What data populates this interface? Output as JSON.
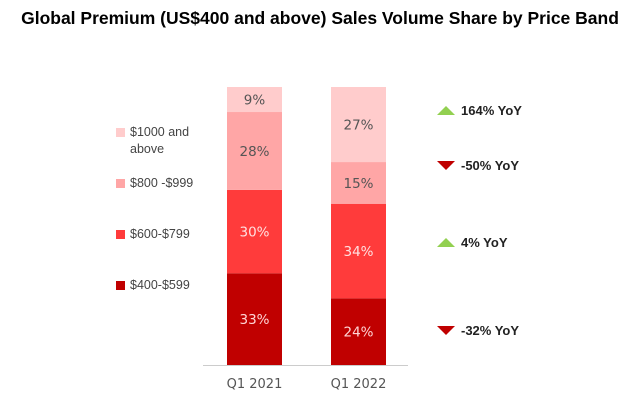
{
  "chart_data": {
    "type": "bar",
    "stacked": true,
    "title": "Global Premium (US$400 and above) Sales Volume Share by Price Band",
    "categories": [
      "Q1 2021",
      "Q1 2022"
    ],
    "series": [
      {
        "name": "$400-$599",
        "color": "#C00000",
        "values": [
          33,
          24
        ],
        "label_color": "#FFD5D5"
      },
      {
        "name": "$600-$799",
        "color": "#FF3B3B",
        "values": [
          30,
          34
        ],
        "label_color": "#FFE0E0"
      },
      {
        "name": "$800 -$999",
        "color": "#FFA6A6",
        "values": [
          28,
          15
        ],
        "label_color": "#555555"
      },
      {
        "name": "$1000 and above",
        "color": "#FFCCCC",
        "values": [
          9,
          27
        ],
        "label_color": "#555555"
      }
    ],
    "ylim": [
      0,
      100
    ],
    "unit": "%",
    "legend": "left",
    "grid": false,
    "annotations": [
      {
        "text": "164% YoY",
        "direction": "up",
        "series": "$1000 and above"
      },
      {
        "text": "-50% YoY",
        "direction": "down",
        "series": "$800 -$999"
      },
      {
        "text": "4% YoY",
        "direction": "up",
        "series": "$600-$799"
      },
      {
        "text": "-32% YoY",
        "direction": "down",
        "series": "$400-$599"
      }
    ]
  }
}
